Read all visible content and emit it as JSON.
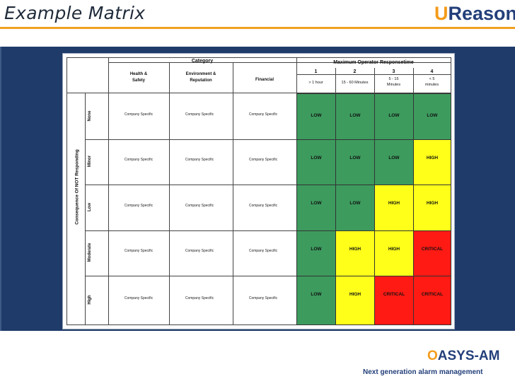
{
  "slide": {
    "title": "Example Matrix",
    "logo_u": "U",
    "logo_rest": "Reason",
    "footer_logo_o": "O",
    "footer_logo_rest": "ASYS-AM",
    "footer_tagline": "Next generation alarm management"
  },
  "matrix": {
    "category_header": "Category",
    "response_header": "Maximum Operator Responsetime",
    "categories": [
      "Health &\nSafety",
      "Environment &\nReputation",
      "Financial"
    ],
    "response_levels": [
      {
        "num": "1",
        "label": "> 1 hour"
      },
      {
        "num": "2",
        "label": "15 - 60 Minutes"
      },
      {
        "num": "3",
        "label": "5 - 15\nMinutes"
      },
      {
        "num": "4",
        "label": "< 5\nminutes"
      }
    ],
    "axis_label": "Consequence Of NOT Responding",
    "company_specific": "Company Specific",
    "rows": [
      {
        "label": "None",
        "cells": [
          "LOW",
          "LOW",
          "LOW",
          "LOW"
        ]
      },
      {
        "label": "Minor",
        "cells": [
          "LOW",
          "LOW",
          "LOW",
          "HIGH"
        ]
      },
      {
        "label": "Low",
        "cells": [
          "LOW",
          "LOW",
          "HIGH",
          "HIGH"
        ]
      },
      {
        "label": "Moderate",
        "cells": [
          "LOW",
          "HIGH",
          "HIGH",
          "CRITICAL"
        ]
      },
      {
        "label": "High",
        "cells": [
          "LOW",
          "HIGH",
          "CRITICAL",
          "CRITICAL"
        ]
      }
    ],
    "colors": {
      "LOW": "#3d9b5e",
      "HIGH": "#ffff1a",
      "CRITICAL": "#ff1a14"
    }
  }
}
